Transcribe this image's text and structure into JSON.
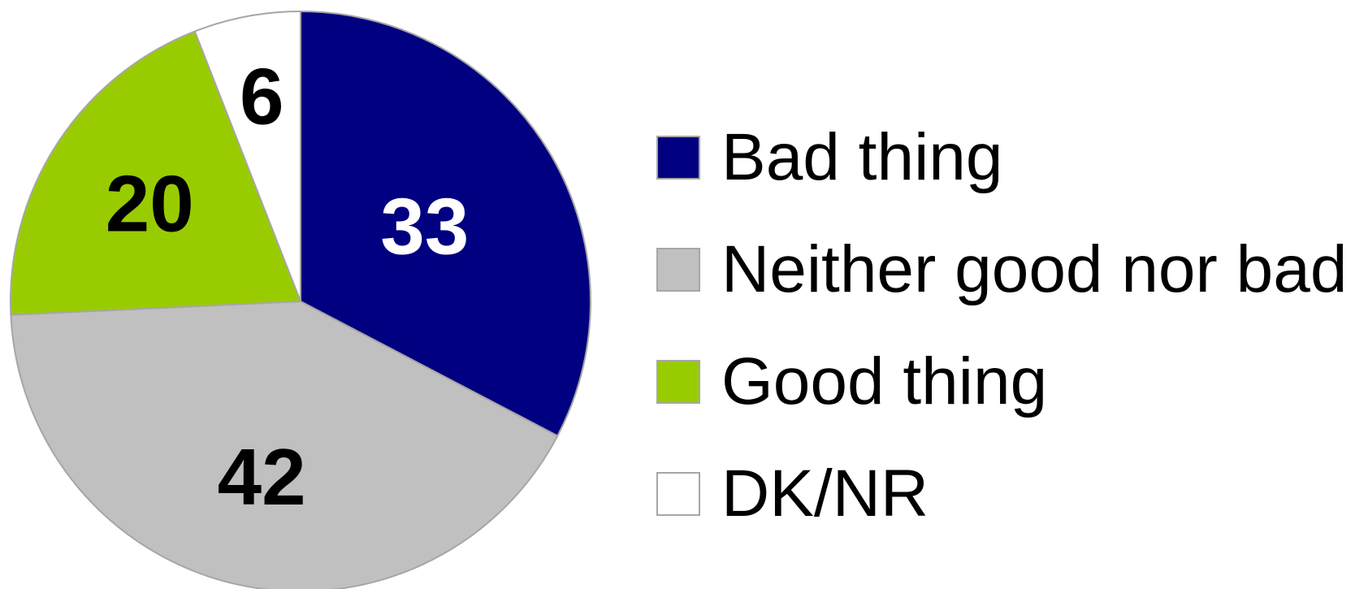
{
  "chart_data": {
    "type": "pie",
    "title": "",
    "start": "12 o'clock",
    "direction": "clockwise",
    "slices": [
      {
        "name": "Bad thing",
        "value": 33,
        "label": "33",
        "color": "#000080",
        "label_color": "#ffffff"
      },
      {
        "name": "Neither good nor bad",
        "value": 42,
        "label": "42",
        "color": "#c0c0c0",
        "label_color": "#000000"
      },
      {
        "name": "Good thing",
        "value": 20,
        "label": "20",
        "color": "#99cc00",
        "label_color": "#000000"
      },
      {
        "name": "DK/NR",
        "value": 6,
        "label": "6",
        "color": "#ffffff",
        "label_color": "#000000"
      }
    ],
    "legend_placement": "right",
    "slice_border_color": "#a6a6a6"
  }
}
